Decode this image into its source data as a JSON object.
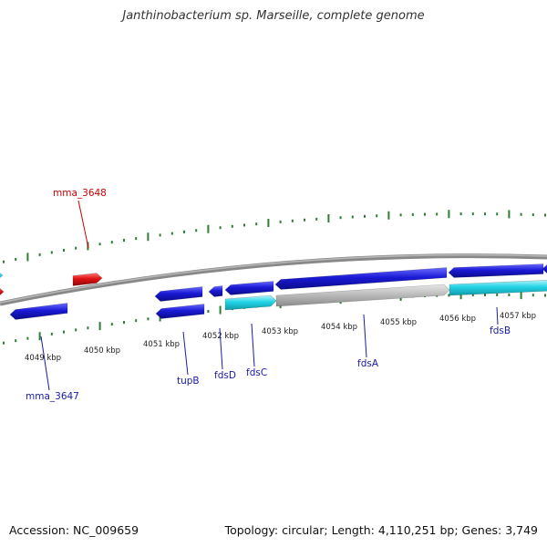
{
  "title": "Janthinobacterium sp. Marseille, complete genome",
  "footer": {
    "accession": "Accession: NC_009659",
    "topology": "Topology: circular; Length: 4,110,251 bp; Genes: 3,749"
  },
  "colors": {
    "backbone": "#777777",
    "tick": "#2e7d32",
    "gene_forward": "#1a1ad6",
    "gene_reverse_red": "#e01010",
    "gene_cyan": "#22d4e6",
    "gene_grey": "#b4b4b4",
    "label_blue": "#1a1aaa",
    "label_red": "#cc0000"
  },
  "scale_labels": [
    "4049 kbp",
    "4050 kbp",
    "4051 kbp",
    "4052 kbp",
    "4053 kbp",
    "4054 kbp",
    "4055 kbp",
    "4056 kbp",
    "4057 kbp"
  ],
  "gene_labels": [
    {
      "name": "mma_3648",
      "color": "red"
    },
    {
      "name": "mma_3647",
      "color": "blue"
    },
    {
      "name": "tupB",
      "color": "blue"
    },
    {
      "name": "fdsD",
      "color": "blue"
    },
    {
      "name": "fdsC",
      "color": "blue"
    },
    {
      "name": "fdsA",
      "color": "blue"
    },
    {
      "name": "fdsB",
      "color": "blue"
    }
  ]
}
